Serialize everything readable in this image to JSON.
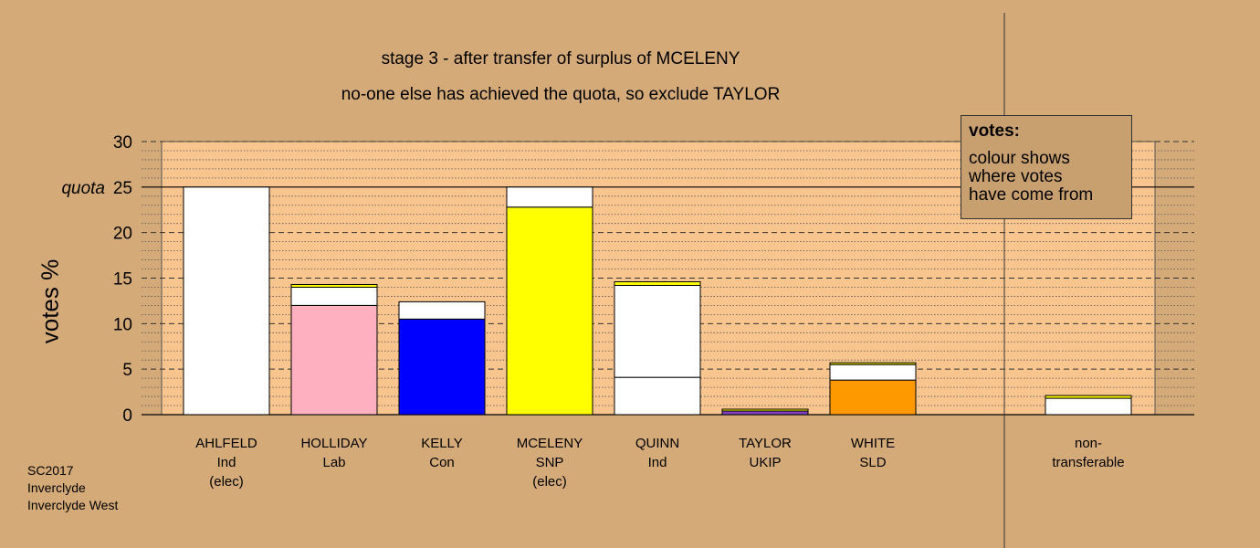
{
  "chart_data": {
    "type": "bar",
    "stacked": true,
    "title": "stage 3 - after transfer of surplus of MCELENY",
    "subtitle": "no-one else has achieved the quota, so exclude TAYLOR",
    "ylabel": "votes %",
    "ylim": [
      0,
      30
    ],
    "yticks": [
      0,
      5,
      10,
      15,
      20,
      25,
      30
    ],
    "quota": {
      "label": "quota",
      "value": 25
    },
    "categories": [
      {
        "name": "AHLFELD",
        "party": "Ind",
        "status": "(elec)"
      },
      {
        "name": "HOLLIDAY",
        "party": "Lab",
        "status": ""
      },
      {
        "name": "KELLY",
        "party": "Con",
        "status": ""
      },
      {
        "name": "MCELENY",
        "party": "SNP",
        "status": "(elec)"
      },
      {
        "name": "QUINN",
        "party": "Ind",
        "status": ""
      },
      {
        "name": "TAYLOR",
        "party": "UKIP",
        "status": ""
      },
      {
        "name": "WHITE",
        "party": "SLD",
        "status": ""
      },
      {
        "name": "",
        "party": "",
        "status": ""
      },
      {
        "name": "non-",
        "party": "transferable",
        "status": ""
      }
    ],
    "bars": [
      [
        {
          "value": 25.0,
          "color": "#ffffff"
        }
      ],
      [
        {
          "value": 12.0,
          "color": "#ffb0c0"
        },
        {
          "value": 2.0,
          "color": "#ffffff"
        },
        {
          "value": 0.3,
          "color": "#ffff00"
        }
      ],
      [
        {
          "value": 10.5,
          "color": "#0000ff"
        },
        {
          "value": 1.9,
          "color": "#ffffff"
        }
      ],
      [
        {
          "value": 22.8,
          "color": "#ffff00"
        },
        {
          "value": 2.2,
          "color": "#ffffff"
        }
      ],
      [
        {
          "value": 4.1,
          "color": "#ffffff"
        },
        {
          "value": 10.1,
          "color": "#ffffff"
        },
        {
          "value": 0.4,
          "color": "#ffff00"
        }
      ],
      [
        {
          "value": 0.4,
          "color": "#8040c0"
        },
        {
          "value": 0.2,
          "color": "#ffff00"
        }
      ],
      [
        {
          "value": 3.8,
          "color": "#ff9900"
        },
        {
          "value": 1.7,
          "color": "#ffffff"
        },
        {
          "value": 0.2,
          "color": "#ffff00"
        }
      ],
      [],
      [
        {
          "value": 1.8,
          "color": "#ffffff"
        },
        {
          "value": 0.3,
          "color": "#ffff00"
        }
      ]
    ],
    "grid": true,
    "colors": {
      "background": "#d4aa78",
      "plot_area": "#f9c58f",
      "legend_box": "#c8a070"
    }
  },
  "legend": {
    "heading": "votes:",
    "lines": [
      "colour shows",
      "where votes",
      "have come from"
    ]
  },
  "footer": [
    "SC2017",
    "Inverclyde",
    "Inverclyde West"
  ]
}
